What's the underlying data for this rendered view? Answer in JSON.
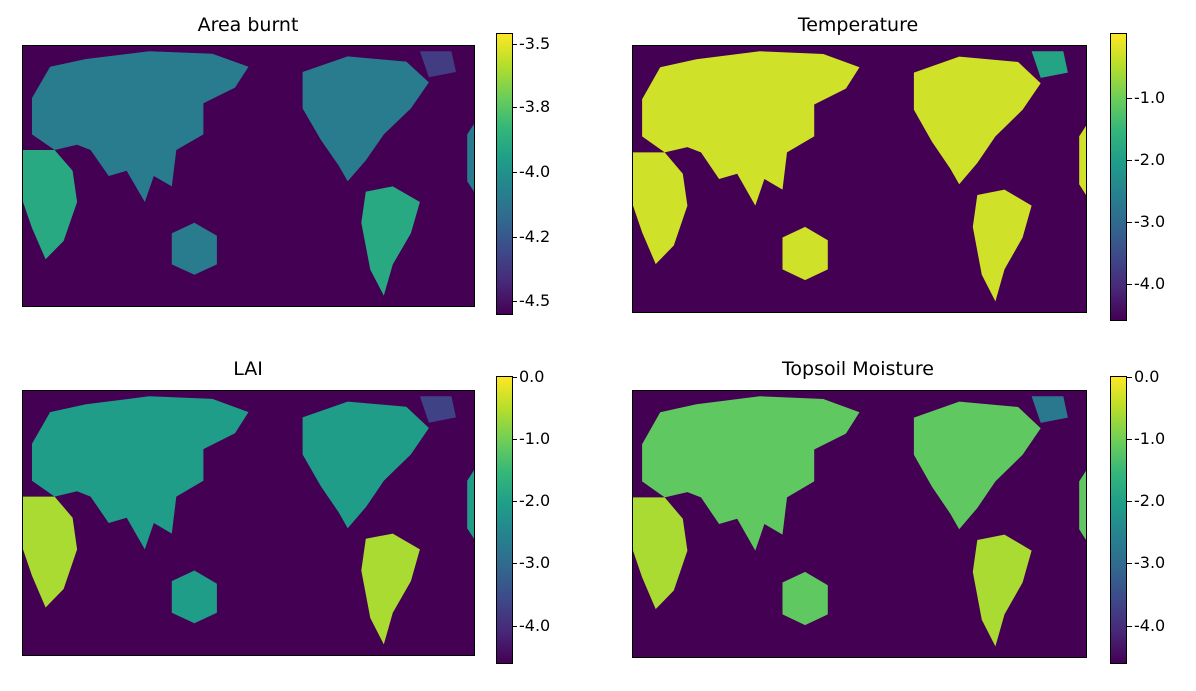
{
  "colors": {
    "ocean": "#440154",
    "viridis": [
      "#440154",
      "#482878",
      "#3e4989",
      "#31688e",
      "#26828e",
      "#1f9e89",
      "#35b779",
      "#6ece58",
      "#b5de2b",
      "#fde725"
    ]
  },
  "chart_data": [
    {
      "type": "heatmap",
      "title": "Area burnt",
      "colorbar_ticks": [
        "-3.5",
        "-3.8",
        "-4.0",
        "-4.2",
        "-4.5"
      ],
      "colorbar_range": [
        -4.55,
        -3.45
      ],
      "land_level": 0.42,
      "hotspot_level": 0.65
    },
    {
      "type": "heatmap",
      "title": "Temperature",
      "colorbar_ticks": [
        "-1.0",
        "-2.0",
        "-3.0",
        "-4.0"
      ],
      "colorbar_range": [
        -4.6,
        0.0
      ],
      "land_level": 0.93,
      "hotspot_level": 0.97
    },
    {
      "type": "heatmap",
      "title": "LAI",
      "colorbar_ticks": [
        "0.0",
        "-1.0",
        "-2.0",
        "-3.0",
        "-4.0"
      ],
      "colorbar_range": [
        -4.6,
        0.0
      ],
      "land_level": 0.55,
      "hotspot_level": 0.95
    },
    {
      "type": "heatmap",
      "title": "Topsoil Moisture",
      "colorbar_ticks": [
        "0.0",
        "-1.0",
        "-2.0",
        "-3.0",
        "-4.0"
      ],
      "colorbar_range": [
        -4.6,
        0.0
      ],
      "land_level": 0.75,
      "hotspot_level": 0.9
    }
  ]
}
